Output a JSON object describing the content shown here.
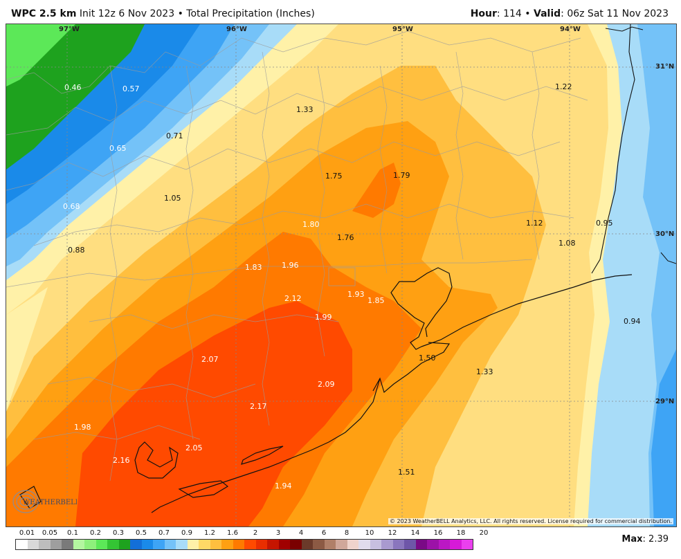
{
  "header": {
    "model": "WPC 2.5 km",
    "run": "Init 12z 6 Nov 2023",
    "product": "Total Precipitation (Inches)",
    "hour_label": "Hour",
    "hour_value": "114",
    "valid_label": "Valid",
    "valid_value": "06z Sat 11 Nov 2023"
  },
  "map": {
    "longitude_labels": [
      "97°W",
      "96°W",
      "95°W",
      "94°W"
    ],
    "latitude_labels": [
      "31°N",
      "30°N",
      "29°N"
    ],
    "point_values": [
      "0.46",
      "0.57",
      "1.33",
      "1.22",
      "0.71",
      "0.65",
      "1.75",
      "1.79",
      "0.68",
      "1.05",
      "1.80",
      "1.12",
      "0.95",
      "1.08",
      "0.88",
      "1.76",
      "1.83",
      "1.96",
      "2.12",
      "1.93",
      "1.85",
      "1.99",
      "0.94",
      "2.07",
      "1.50",
      "1.33",
      "2.09",
      "2.17",
      "1.98",
      "2.05",
      "2.16",
      "1.51",
      "1.94"
    ],
    "logo_text": "WEATHERBELL",
    "copyright": "© 2023 WeatherBELL Analytics, LLC. All rights reserved. License required for commercial distribution."
  },
  "legend": {
    "tick_labels": [
      "0.01",
      "0.05",
      "0.1",
      "0.2",
      "0.3",
      "0.5",
      "0.7",
      "0.9",
      "1.2",
      "1.6",
      "2",
      "3",
      "4",
      "6",
      "8",
      "10",
      "12",
      "14",
      "16",
      "18",
      "20"
    ],
    "colors": [
      "#ffffff",
      "#d9d9d9",
      "#bdbdbd",
      "#9e9e9e",
      "#7a7a7a",
      "#b4f6a0",
      "#8ef07c",
      "#5ce858",
      "#34c534",
      "#1ea21e",
      "#136fd8",
      "#1a8ae9",
      "#3ea4f5",
      "#74c2f8",
      "#a8dcf8",
      "#fff1a8",
      "#ffd966",
      "#ffbf3f",
      "#ffa012",
      "#ff7a00",
      "#ff4a00",
      "#e92e00",
      "#c61500",
      "#a00000",
      "#7a0000",
      "#6b3a2a",
      "#8c5a44",
      "#b07f68",
      "#d0a79a",
      "#efd3cc",
      "#e0dcec",
      "#c7bfe0",
      "#a99acf",
      "#8a76bd",
      "#6e56a8",
      "#7a0a86",
      "#9c12a8",
      "#bb18c4",
      "#d61ad8",
      "#ea40ee"
    ],
    "max_label": "Max",
    "max_value": "2.39"
  }
}
